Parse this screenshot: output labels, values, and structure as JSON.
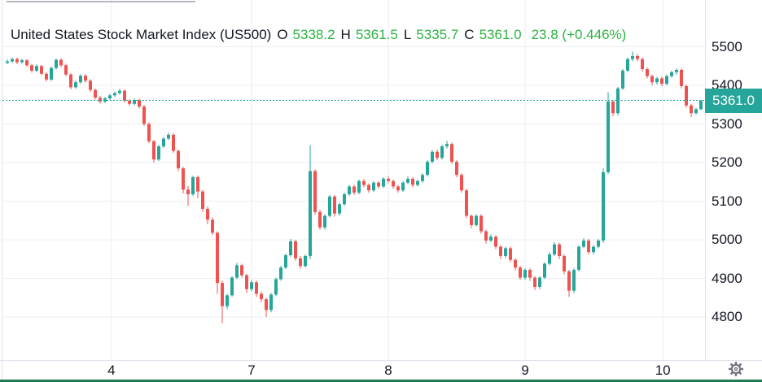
{
  "header": {
    "title": "United States Stock Market Index (US500)",
    "o_label": "O",
    "o_value": "5338.2",
    "h_label": "H",
    "h_value": "5361.5",
    "l_label": "L",
    "l_value": "5335.7",
    "c_label": "C",
    "c_value": "5361.0",
    "change": "23.8 (+0.446%)"
  },
  "price_axis": {
    "badge": "5361.0"
  },
  "icons": {
    "settings": "gear-icon"
  },
  "colors": {
    "up": "#26a69a",
    "down": "#ef5350",
    "legend_green": "#2cb342",
    "badge_bg": "#26a69a",
    "text": "#131722",
    "hgrid": "#edeff3",
    "vgrid": "#e9eef8",
    "bottom_bar": "#1e7b52"
  },
  "chart_data": {
    "type": "candlestick",
    "title": "United States Stock Market Index (US500)",
    "last_bar": {
      "open": 5338.2,
      "high": 5361.5,
      "low": 5335.7,
      "close": 5361.0,
      "change": 23.8,
      "change_pct": "+0.446%"
    },
    "current_price": 5361.0,
    "y_ticks": [
      5500,
      5400,
      5300,
      5200,
      5100,
      5000,
      4900,
      4800
    ],
    "ylim": [
      4760,
      5510
    ],
    "x_ticks": [
      {
        "label": "4",
        "index": 21.3
      },
      {
        "label": "7",
        "index": 50
      },
      {
        "label": "8",
        "index": 78
      },
      {
        "label": "9",
        "index": 106
      },
      {
        "label": "10",
        "index": 134.2
      }
    ],
    "legend_position": "top-left",
    "grid": true,
    "up_color": "#26a69a",
    "down_color": "#ef5350",
    "candles": [
      [
        5458,
        5467,
        5455,
        5462
      ],
      [
        5462,
        5472,
        5458,
        5468
      ],
      [
        5468,
        5472,
        5455,
        5460
      ],
      [
        5460,
        5469,
        5456,
        5465
      ],
      [
        5465,
        5468,
        5448,
        5452
      ],
      [
        5452,
        5456,
        5433,
        5438
      ],
      [
        5438,
        5454,
        5434,
        5450
      ],
      [
        5450,
        5453,
        5426,
        5430
      ],
      [
        5430,
        5434,
        5410,
        5415
      ],
      [
        5415,
        5449,
        5411,
        5445
      ],
      [
        5445,
        5470,
        5441,
        5466
      ],
      [
        5466,
        5470,
        5447,
        5452
      ],
      [
        5452,
        5456,
        5423,
        5428
      ],
      [
        5428,
        5432,
        5390,
        5395
      ],
      [
        5395,
        5412,
        5391,
        5408
      ],
      [
        5408,
        5429,
        5404,
        5425
      ],
      [
        5425,
        5429,
        5407,
        5412
      ],
      [
        5412,
        5416,
        5383,
        5388
      ],
      [
        5388,
        5392,
        5363,
        5368
      ],
      [
        5368,
        5372,
        5353,
        5358
      ],
      [
        5358,
        5370,
        5354,
        5366
      ],
      [
        5366,
        5378,
        5362,
        5374
      ],
      [
        5374,
        5384,
        5370,
        5380
      ],
      [
        5380,
        5391,
        5376,
        5386
      ],
      [
        5386,
        5390,
        5355,
        5360
      ],
      [
        5360,
        5364,
        5347,
        5352
      ],
      [
        5352,
        5366,
        5348,
        5362
      ],
      [
        5362,
        5366,
        5340,
        5345
      ],
      [
        5345,
        5349,
        5295,
        5300
      ],
      [
        5300,
        5304,
        5250,
        5255
      ],
      [
        5255,
        5259,
        5200,
        5208
      ],
      [
        5208,
        5246,
        5204,
        5242
      ],
      [
        5242,
        5266,
        5238,
        5262
      ],
      [
        5262,
        5277,
        5258,
        5272
      ],
      [
        5272,
        5276,
        5225,
        5230
      ],
      [
        5230,
        5234,
        5178,
        5185
      ],
      [
        5185,
        5189,
        5120,
        5130
      ],
      [
        5130,
        5140,
        5088,
        5118
      ],
      [
        5118,
        5166,
        5114,
        5162
      ],
      [
        5162,
        5166,
        5108,
        5125
      ],
      [
        5125,
        5129,
        5072,
        5080
      ],
      [
        5080,
        5086,
        5040,
        5052
      ],
      [
        5052,
        5058,
        5012,
        5018
      ],
      [
        5018,
        5022,
        4860,
        4888
      ],
      [
        4888,
        4894,
        4784,
        4828
      ],
      [
        4828,
        4860,
        4820,
        4856
      ],
      [
        4856,
        4906,
        4852,
        4902
      ],
      [
        4902,
        4940,
        4898,
        4934
      ],
      [
        4934,
        4938,
        4902,
        4908
      ],
      [
        4908,
        4912,
        4862,
        4872
      ],
      [
        4872,
        4896,
        4866,
        4890
      ],
      [
        4890,
        4894,
        4852,
        4860
      ],
      [
        4860,
        4866,
        4838,
        4846
      ],
      [
        4846,
        4850,
        4800,
        4818
      ],
      [
        4818,
        4862,
        4812,
        4858
      ],
      [
        4858,
        4902,
        4854,
        4898
      ],
      [
        4898,
        4932,
        4894,
        4928
      ],
      [
        4928,
        4964,
        4924,
        4960
      ],
      [
        4960,
        5002,
        4956,
        4996
      ],
      [
        4996,
        5000,
        4946,
        4952
      ],
      [
        4952,
        4958,
        4925,
        4932
      ],
      [
        4932,
        4962,
        4928,
        4958
      ],
      [
        4958,
        5245,
        4950,
        5178
      ],
      [
        5178,
        5182,
        5065,
        5072
      ],
      [
        5072,
        5078,
        5026,
        5032
      ],
      [
        5032,
        5066,
        5026,
        5062
      ],
      [
        5062,
        5116,
        5058,
        5112
      ],
      [
        5112,
        5116,
        5060,
        5068
      ],
      [
        5068,
        5096,
        5062,
        5092
      ],
      [
        5092,
        5122,
        5088,
        5118
      ],
      [
        5118,
        5142,
        5114,
        5138
      ],
      [
        5138,
        5142,
        5116,
        5122
      ],
      [
        5122,
        5156,
        5118,
        5152
      ],
      [
        5152,
        5158,
        5136,
        5142
      ],
      [
        5142,
        5146,
        5122,
        5128
      ],
      [
        5128,
        5152,
        5124,
        5148
      ],
      [
        5148,
        5152,
        5132,
        5138
      ],
      [
        5138,
        5162,
        5134,
        5158
      ],
      [
        5158,
        5164,
        5146,
        5152
      ],
      [
        5152,
        5156,
        5132,
        5138
      ],
      [
        5138,
        5142,
        5122,
        5128
      ],
      [
        5128,
        5152,
        5124,
        5148
      ],
      [
        5148,
        5164,
        5144,
        5158
      ],
      [
        5158,
        5162,
        5136,
        5142
      ],
      [
        5142,
        5156,
        5138,
        5152
      ],
      [
        5152,
        5172,
        5148,
        5168
      ],
      [
        5168,
        5206,
        5164,
        5202
      ],
      [
        5202,
        5232,
        5198,
        5228
      ],
      [
        5228,
        5234,
        5206,
        5212
      ],
      [
        5212,
        5246,
        5208,
        5242
      ],
      [
        5242,
        5256,
        5236,
        5248
      ],
      [
        5248,
        5252,
        5196,
        5202
      ],
      [
        5202,
        5206,
        5162,
        5168
      ],
      [
        5168,
        5172,
        5122,
        5128
      ],
      [
        5128,
        5132,
        5056,
        5062
      ],
      [
        5062,
        5066,
        5030,
        5038
      ],
      [
        5038,
        5066,
        5034,
        5062
      ],
      [
        5062,
        5066,
        5016,
        5022
      ],
      [
        5022,
        5026,
        4990,
        4998
      ],
      [
        4998,
        5014,
        4994,
        5008
      ],
      [
        5008,
        5012,
        4976,
        4982
      ],
      [
        4982,
        4986,
        4950,
        4958
      ],
      [
        4958,
        4982,
        4952,
        4978
      ],
      [
        4978,
        4982,
        4942,
        4948
      ],
      [
        4948,
        4952,
        4920,
        4928
      ],
      [
        4928,
        4932,
        4896,
        4902
      ],
      [
        4902,
        4926,
        4896,
        4922
      ],
      [
        4922,
        4926,
        4894,
        4902
      ],
      [
        4902,
        4906,
        4870,
        4878
      ],
      [
        4878,
        4906,
        4872,
        4902
      ],
      [
        4902,
        4942,
        4898,
        4938
      ],
      [
        4938,
        4968,
        4934,
        4962
      ],
      [
        4962,
        4994,
        4958,
        4988
      ],
      [
        4988,
        4992,
        4950,
        4958
      ],
      [
        4958,
        4962,
        4910,
        4918
      ],
      [
        4918,
        4922,
        4852,
        4868
      ],
      [
        4868,
        4926,
        4862,
        4922
      ],
      [
        4922,
        4986,
        4918,
        4982
      ],
      [
        4982,
        5004,
        4978,
        4998
      ],
      [
        4998,
        5002,
        4962,
        4968
      ],
      [
        4968,
        4986,
        4962,
        4982
      ],
      [
        4982,
        5002,
        4978,
        4998
      ],
      [
        4998,
        5185,
        4992,
        5175
      ],
      [
        5175,
        5382,
        5170,
        5358
      ],
      [
        5358,
        5362,
        5320,
        5328
      ],
      [
        5328,
        5396,
        5322,
        5392
      ],
      [
        5392,
        5442,
        5388,
        5438
      ],
      [
        5438,
        5472,
        5434,
        5468
      ],
      [
        5468,
        5487,
        5462,
        5476
      ],
      [
        5476,
        5481,
        5462,
        5468
      ],
      [
        5468,
        5472,
        5436,
        5442
      ],
      [
        5442,
        5446,
        5418,
        5424
      ],
      [
        5424,
        5428,
        5400,
        5408
      ],
      [
        5408,
        5422,
        5402,
        5418
      ],
      [
        5418,
        5422,
        5398,
        5404
      ],
      [
        5404,
        5428,
        5400,
        5424
      ],
      [
        5424,
        5438,
        5420,
        5434
      ],
      [
        5434,
        5444,
        5428,
        5440
      ],
      [
        5440,
        5444,
        5392,
        5398
      ],
      [
        5398,
        5402,
        5342,
        5348
      ],
      [
        5348,
        5352,
        5318,
        5328
      ],
      [
        5328,
        5342,
        5324,
        5338
      ],
      [
        5338.2,
        5361.5,
        5335.7,
        5361.0
      ]
    ]
  }
}
